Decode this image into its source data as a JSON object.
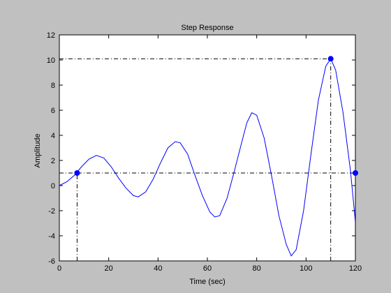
{
  "chart_data": {
    "type": "line",
    "title": "Step Response",
    "x_label": "Time (sec)",
    "y_label": "Amplitude",
    "x": [
      0,
      3,
      6,
      9,
      12,
      15,
      18,
      21,
      24,
      27,
      30,
      32,
      35,
      38,
      41,
      44,
      47,
      49,
      52,
      55,
      58,
      61,
      63,
      65,
      68,
      71,
      74,
      76,
      78,
      80,
      83,
      86,
      89,
      92,
      94,
      96,
      99,
      102,
      105,
      108,
      110,
      112,
      115,
      118,
      120
    ],
    "series": [
      {
        "color": "#0000ff",
        "values": [
          0,
          0.3,
          0.8,
          1.5,
          2.1,
          2.4,
          2.2,
          1.5,
          0.6,
          -0.2,
          -0.8,
          -0.9,
          -0.5,
          0.5,
          1.8,
          3.0,
          3.5,
          3.4,
          2.5,
          0.8,
          -0.8,
          -2.1,
          -2.5,
          -2.4,
          -1.0,
          1.2,
          3.5,
          5.0,
          5.8,
          5.6,
          3.8,
          0.8,
          -2.4,
          -4.7,
          -5.6,
          -5.1,
          -2.0,
          2.5,
          6.8,
          9.5,
          10.1,
          9.2,
          5.8,
          1.2,
          -2.9
        ]
      }
    ],
    "markers": {
      "color": "#0000ff",
      "x": [
        7.2,
        110,
        120
      ],
      "values": [
        1.0,
        10.1,
        1.0
      ]
    },
    "xlim": [
      0,
      120
    ],
    "ylim": [
      -6,
      12
    ],
    "xticks": [
      0,
      20,
      40,
      60,
      80,
      100,
      120
    ],
    "yticks": [
      -6,
      -4,
      -2,
      0,
      2,
      4,
      6,
      8,
      10,
      12
    ],
    "grid": false
  }
}
